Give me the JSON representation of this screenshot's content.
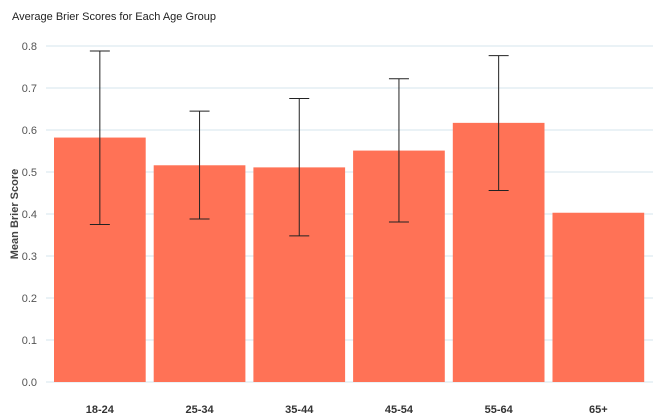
{
  "chart_data": {
    "type": "bar",
    "title": "Average Brier Scores for Each Age Group",
    "xlabel": "",
    "ylabel": "Mean Brier Score",
    "categories": [
      "18-24",
      "25-34",
      "35-44",
      "45-54",
      "55-64",
      "65+"
    ],
    "values": [
      0.582,
      0.516,
      0.511,
      0.551,
      0.617,
      0.403
    ],
    "error_low": [
      0.375,
      0.388,
      0.348,
      0.381,
      0.456,
      null
    ],
    "error_high": [
      0.788,
      0.645,
      0.675,
      0.722,
      0.777,
      null
    ],
    "ylim": [
      0,
      0.8
    ],
    "yticks": [
      0.0,
      0.1,
      0.2,
      0.3,
      0.4,
      0.5,
      0.6,
      0.7,
      0.8
    ],
    "ytick_labels": [
      "0.0",
      "0.1",
      "0.2",
      "0.3",
      "0.4",
      "0.5",
      "0.6",
      "0.7",
      "0.8"
    ],
    "grid": true,
    "legend": "none",
    "bar_color": "#ff7256",
    "grid_color": "#d6e6ee",
    "error_bar_color": "#222222"
  }
}
